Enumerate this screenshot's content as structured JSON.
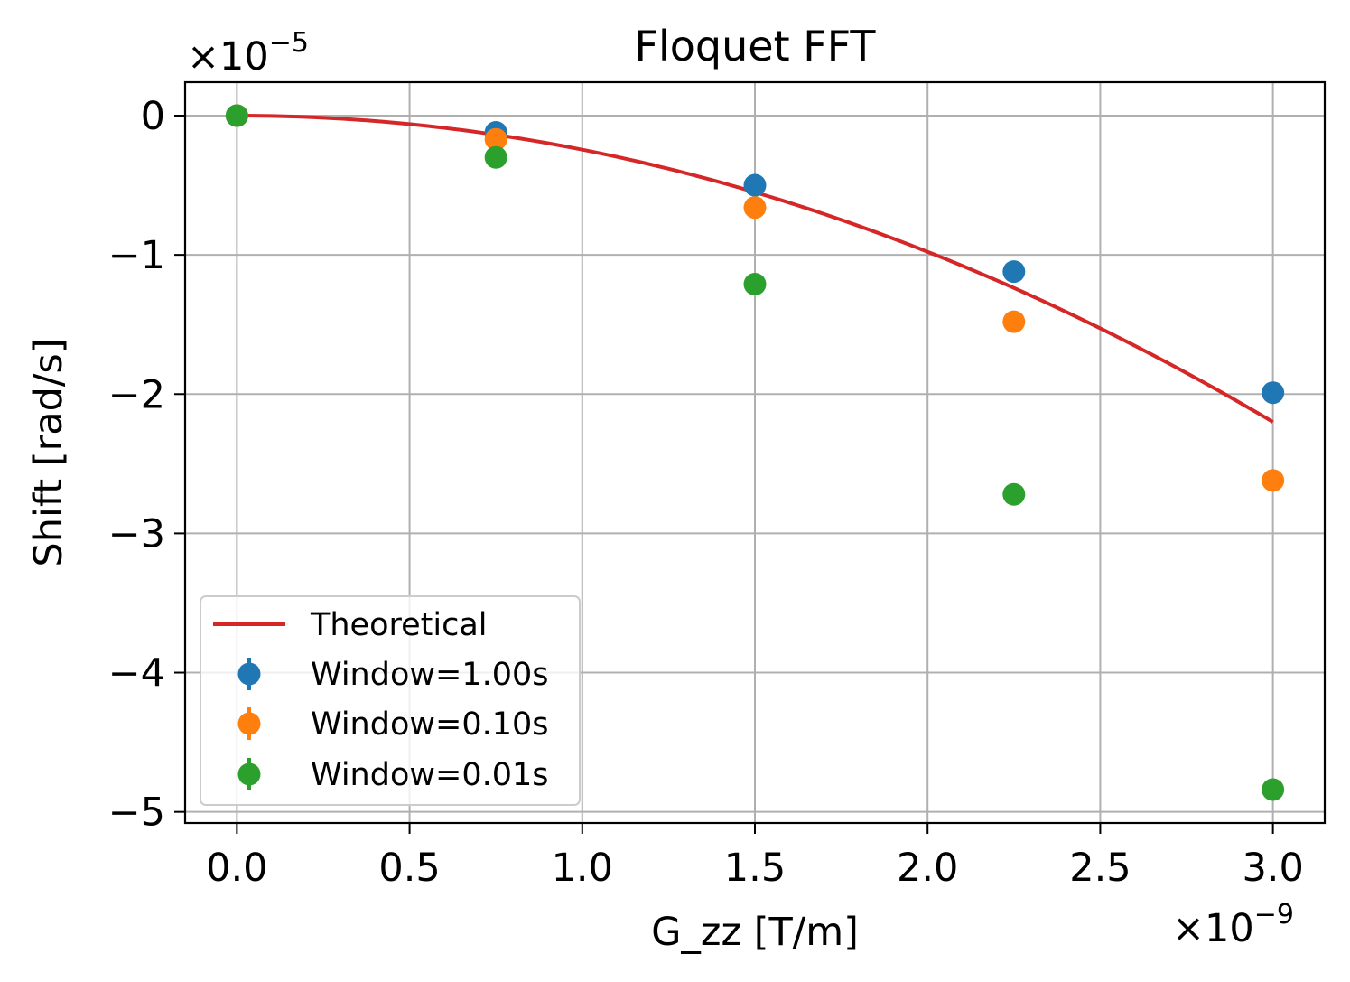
{
  "chart_data": {
    "type": "scatter",
    "title": "Floquet FFT",
    "xlabel": "G_zz [T/m]",
    "ylabel": "Shift [rad/s]",
    "x_offset_text": {
      "base": "×10",
      "exponent": "−9"
    },
    "y_offset_text": {
      "base": "×10",
      "exponent": "−5"
    },
    "x_ticks": [
      0.0,
      0.5,
      1.0,
      1.5,
      2.0,
      2.5,
      3.0
    ],
    "x_tick_labels": [
      "0.0",
      "0.5",
      "1.0",
      "1.5",
      "2.0",
      "2.5",
      "3.0"
    ],
    "y_ticks": [
      0,
      -1,
      -2,
      -3,
      -4,
      -5
    ],
    "y_tick_labels": [
      "0",
      "−1",
      "−2",
      "−3",
      "−4",
      "−5"
    ],
    "xlim": [
      -0.15,
      3.15
    ],
    "ylim": [
      -5.08,
      0.24
    ],
    "grid": true,
    "legend_position": "lower-left",
    "curve": {
      "name": "Theoretical",
      "color": "#d62728",
      "coefficient": -2.2,
      "x_range": [
        0.0,
        3.0
      ]
    },
    "series": [
      {
        "name": "Window=1.00s",
        "color": "#1f77b4",
        "x": [
          0.0,
          0.75,
          1.5,
          2.25,
          3.0
        ],
        "y": [
          0.0,
          -0.12,
          -0.5,
          -1.12,
          -1.99
        ]
      },
      {
        "name": "Window=0.10s",
        "color": "#ff7f0e",
        "x": [
          0.0,
          0.75,
          1.5,
          2.25,
          3.0
        ],
        "y": [
          0.0,
          -0.17,
          -0.66,
          -1.48,
          -2.62
        ]
      },
      {
        "name": "Window=0.01s",
        "color": "#2ca02c",
        "x": [
          0.0,
          0.75,
          1.5,
          2.25,
          3.0
        ],
        "y": [
          0.0,
          -0.3,
          -1.21,
          -2.72,
          -4.84
        ]
      }
    ]
  }
}
